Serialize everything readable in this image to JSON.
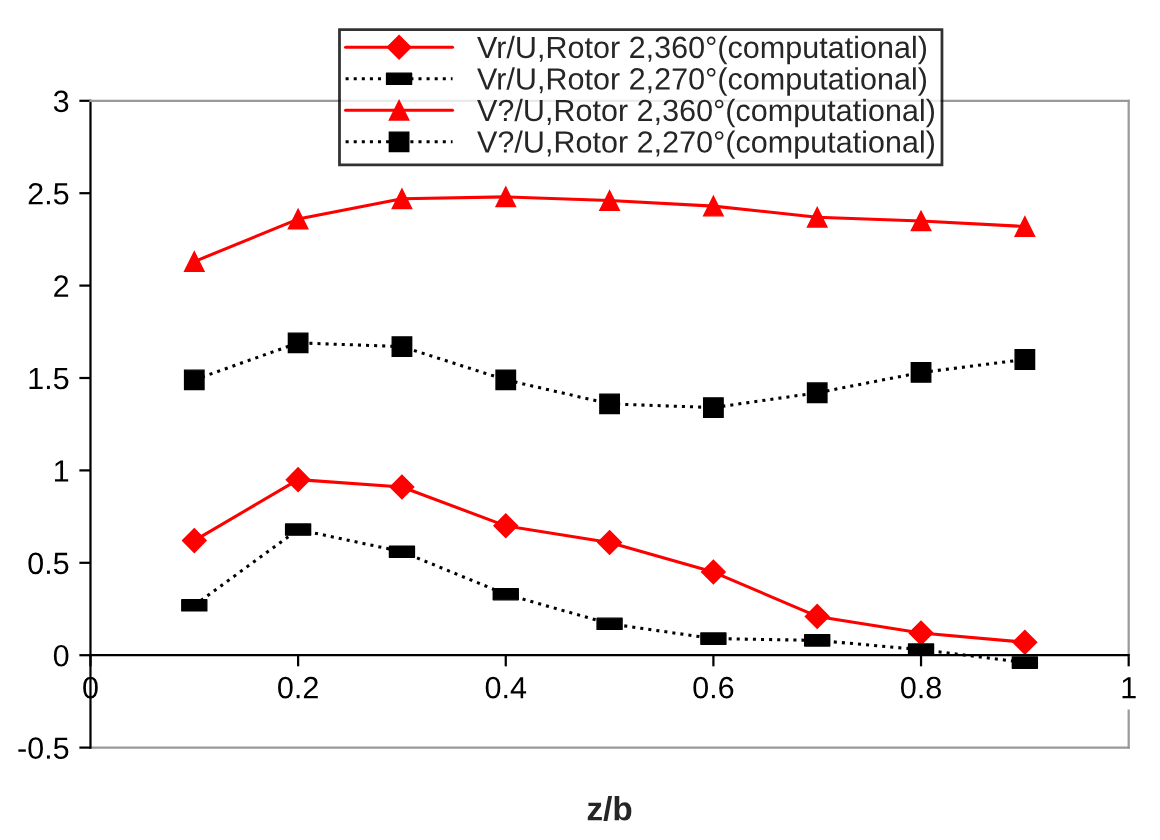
{
  "chart_data": {
    "type": "line",
    "xlabel": "z/b",
    "x": [
      0.1,
      0.2,
      0.3,
      0.4,
      0.5,
      0.6,
      0.7,
      0.8,
      0.9
    ],
    "series": [
      {
        "name": "Vr/U,Rotor 2,360°(computational)",
        "color": "#ff0000",
        "marker": "diamond",
        "line_style": "solid",
        "values": [
          0.62,
          0.95,
          0.91,
          0.7,
          0.61,
          0.45,
          0.21,
          0.12,
          0.07
        ]
      },
      {
        "name": "Vr/U,Rotor 2,270°(computational)",
        "color": "#000000",
        "marker": "square",
        "line_style": "dotted",
        "values": [
          0.27,
          0.68,
          0.56,
          0.33,
          0.17,
          0.09,
          0.08,
          0.03,
          -0.04
        ]
      },
      {
        "name": "V?/U,Rotor 2,360°(computational)",
        "color": "#ff0000",
        "marker": "triangle",
        "line_style": "solid",
        "values": [
          2.13,
          2.36,
          2.47,
          2.48,
          2.46,
          2.43,
          2.37,
          2.35,
          2.32
        ]
      },
      {
        "name": "V?/U,Rotor 2,270°(computational)",
        "color": "#000000",
        "marker": "square",
        "line_style": "dotted",
        "values": [
          1.49,
          1.69,
          1.67,
          1.49,
          1.36,
          1.34,
          1.42,
          1.53,
          1.6
        ]
      }
    ],
    "xlim": [
      0,
      1
    ],
    "xticks": [
      0,
      0.2,
      0.4,
      0.6,
      0.8,
      1
    ],
    "ylim": [
      -0.5,
      3
    ],
    "yticks": [
      -0.5,
      0,
      0.5,
      1,
      1.5,
      2,
      2.5,
      3
    ],
    "grid": false,
    "legend": "top"
  }
}
